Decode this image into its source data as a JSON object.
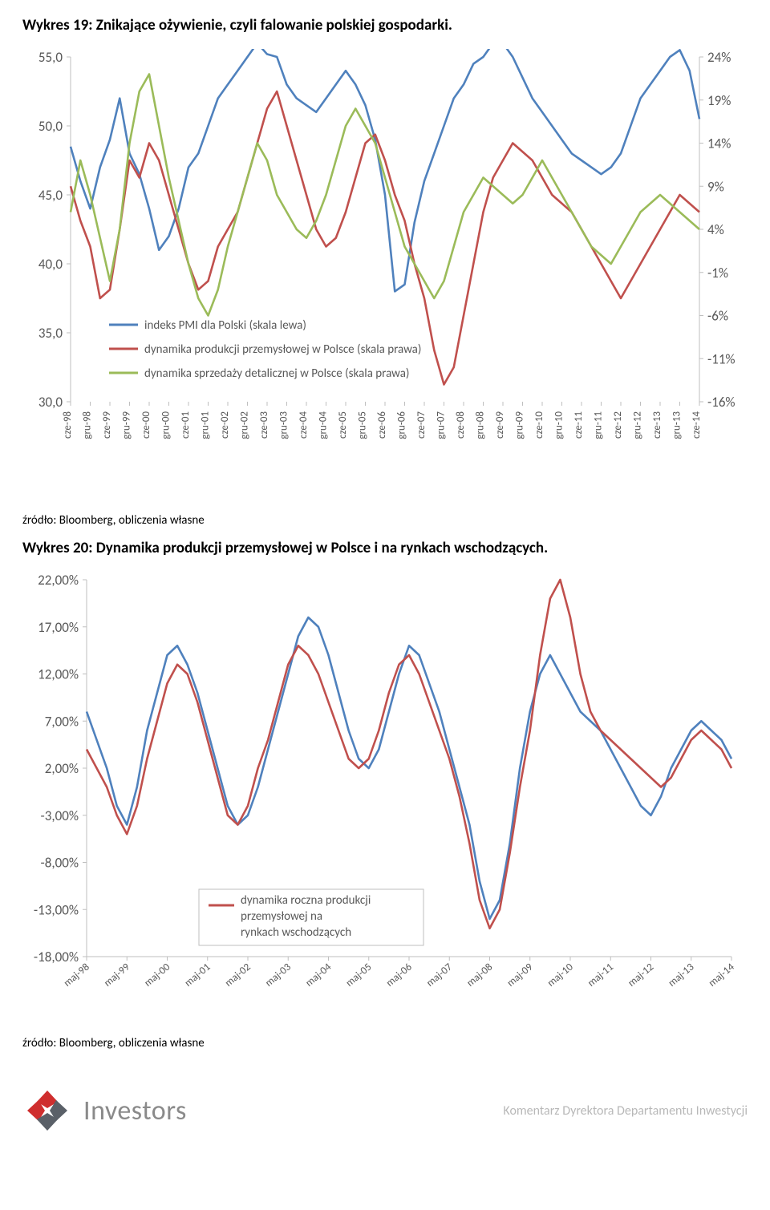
{
  "chart1": {
    "title": "Wykres 19: Znikające ożywienie, czyli falowanie polskiej gospodarki.",
    "type": "line",
    "left_axis": {
      "min": 30,
      "max": 55,
      "ticks": [
        30,
        35,
        40,
        45,
        50,
        55
      ],
      "labels": [
        "30,0",
        "35,0",
        "40,0",
        "45,0",
        "50,0",
        "55,0"
      ],
      "fontsize": 17,
      "color": "#595959"
    },
    "right_axis": {
      "min": -16,
      "max": 24,
      "ticks": [
        -16,
        -11,
        -6,
        -1,
        4,
        9,
        14,
        19,
        24
      ],
      "labels": [
        "-16%",
        "-11%",
        "-6%",
        "-1%",
        "4%",
        "9%",
        "14%",
        "19%",
        "24%"
      ],
      "fontsize": 17,
      "color": "#595959"
    },
    "x_labels": [
      "cze-98",
      "gru-98",
      "cze-99",
      "gru-99",
      "cze-00",
      "gru-00",
      "cze-01",
      "gru-01",
      "cze-02",
      "gru-02",
      "cze-03",
      "gru-03",
      "cze-04",
      "gru-04",
      "cze-05",
      "gru-05",
      "cze-06",
      "gru-06",
      "cze-07",
      "gru-07",
      "cze-08",
      "gru-08",
      "cze-09",
      "gru-09",
      "cze-10",
      "gru-10",
      "cze-11",
      "gru-11",
      "cze-12",
      "gru-12",
      "cze-13",
      "gru-13",
      "cze-14"
    ],
    "x_label_fontsize": 13,
    "grid_color": "#d9d9d9",
    "axis_color": "#bfbfbf",
    "line_width": 2.6,
    "background_color": "#ffffff",
    "series": [
      {
        "name": "pmi",
        "legend": "indeks PMI dla Polski (skala lewa)",
        "color": "#4f81bd",
        "axis": "left",
        "values": [
          48.5,
          46,
          44,
          47,
          49,
          52,
          48,
          46.5,
          44,
          41,
          42,
          44,
          47,
          48,
          50,
          52,
          53,
          54,
          55,
          56,
          55.2,
          55,
          53,
          52,
          51.5,
          51,
          52,
          53,
          54,
          53,
          51.5,
          49,
          45,
          38,
          38.5,
          43,
          46,
          48,
          50,
          52,
          53,
          54.5,
          55,
          56,
          56,
          55,
          53.5,
          52,
          51,
          50,
          49,
          48,
          47.5,
          47,
          46.5,
          47,
          48,
          50,
          52,
          53,
          54,
          55,
          55.5,
          54,
          50.5
        ]
      },
      {
        "name": "prod",
        "legend": "dynamika produkcji przemysłowej w Polsce (skala prawa)",
        "color": "#c0504d",
        "axis": "right",
        "values": [
          9,
          5,
          2,
          -4,
          -3,
          4,
          12,
          10,
          14,
          12,
          8,
          4,
          0,
          -3,
          -2,
          2,
          4,
          6,
          10,
          14,
          18,
          20,
          16,
          12,
          8,
          4,
          2,
          3,
          6,
          10,
          14,
          15,
          12,
          8,
          5,
          0,
          -4,
          -10,
          -14,
          -12,
          -6,
          0,
          6,
          10,
          12,
          14,
          13,
          12,
          10,
          8,
          7,
          6,
          4,
          2,
          0,
          -2,
          -4,
          -2,
          0,
          2,
          4,
          6,
          8,
          7,
          6
        ]
      },
      {
        "name": "retail",
        "legend": "dynamika sprzedaży detalicznej w Polsce (skala prawa)",
        "color": "#9bbb59",
        "axis": "right",
        "values": [
          6,
          12,
          8,
          3,
          -2,
          4,
          14,
          20,
          22,
          16,
          10,
          5,
          0,
          -4,
          -6,
          -3,
          2,
          6,
          10,
          14,
          12,
          8,
          6,
          4,
          3,
          5,
          8,
          12,
          16,
          18,
          16,
          14,
          10,
          6,
          2,
          0,
          -2,
          -4,
          -2,
          2,
          6,
          8,
          10,
          9,
          8,
          7,
          8,
          10,
          12,
          10,
          8,
          6,
          4,
          2,
          1,
          0,
          2,
          4,
          6,
          7,
          8,
          7,
          6,
          5,
          4
        ]
      }
    ]
  },
  "chart1_source": "źródło: Bloomberg, obliczenia własne",
  "chart2": {
    "title": "Wykres 20: Dynamika produkcji przemysłowej w Polsce i na rynkach wschodzących.",
    "type": "line",
    "left_axis": {
      "min": -18,
      "max": 22,
      "ticks": [
        -18,
        -13,
        -8,
        -3,
        2,
        7,
        12,
        17,
        22
      ],
      "labels": [
        "-18,00%",
        "-13,00%",
        "-8,00%",
        "-3,00%",
        "2,00%",
        "7,00%",
        "12,00%",
        "17,00%",
        "22,00%"
      ],
      "fontsize": 17,
      "color": "#595959"
    },
    "x_labels": [
      "maj-98",
      "maj-99",
      "maj-00",
      "maj-01",
      "maj-02",
      "maj-03",
      "maj-04",
      "maj-05",
      "maj-06",
      "maj-07",
      "maj-08",
      "maj-09",
      "maj-10",
      "maj-11",
      "maj-12",
      "maj-13",
      "maj-14"
    ],
    "x_label_fontsize": 13,
    "grid_color": "#d9d9d9",
    "axis_color": "#bfbfbf",
    "line_width": 2.6,
    "background_color": "#ffffff",
    "legend": {
      "label": "dynamika roczna produkcji przemysłowej na rynkach wschodzących",
      "box_border": "#bfbfbf",
      "text_color": "#595959"
    },
    "series": [
      {
        "name": "pl",
        "color": "#4f81bd",
        "values": [
          8,
          5,
          2,
          -2,
          -4,
          0,
          6,
          10,
          14,
          15,
          13,
          10,
          6,
          2,
          -2,
          -4,
          -3,
          0,
          4,
          8,
          12,
          16,
          18,
          17,
          14,
          10,
          6,
          3,
          2,
          4,
          8,
          12,
          15,
          14,
          11,
          8,
          4,
          0,
          -4,
          -10,
          -14,
          -12,
          -6,
          2,
          8,
          12,
          14,
          12,
          10,
          8,
          7,
          6,
          4,
          2,
          0,
          -2,
          -3,
          -1,
          2,
          4,
          6,
          7,
          6,
          5,
          3
        ]
      },
      {
        "name": "em",
        "color": "#c0504d",
        "values": [
          4,
          2,
          0,
          -3,
          -5,
          -2,
          3,
          7,
          11,
          13,
          12,
          9,
          5,
          1,
          -3,
          -4,
          -2,
          2,
          5,
          9,
          13,
          15,
          14,
          12,
          9,
          6,
          3,
          2,
          3,
          6,
          10,
          13,
          14,
          12,
          9,
          6,
          3,
          -1,
          -6,
          -12,
          -15,
          -13,
          -7,
          0,
          6,
          14,
          20,
          22,
          18,
          12,
          8,
          6,
          5,
          4,
          3,
          2,
          1,
          0,
          1,
          3,
          5,
          6,
          5,
          4,
          2
        ]
      }
    ]
  },
  "chart2_source": "źródło: Bloomberg, obliczenia własne",
  "footer": {
    "brand": "Investors",
    "right": "Komentarz Dyrektora Departamentu Inwestycji",
    "logo_colors": {
      "red": "#cf2e2e",
      "dark": "#5a6068"
    }
  }
}
